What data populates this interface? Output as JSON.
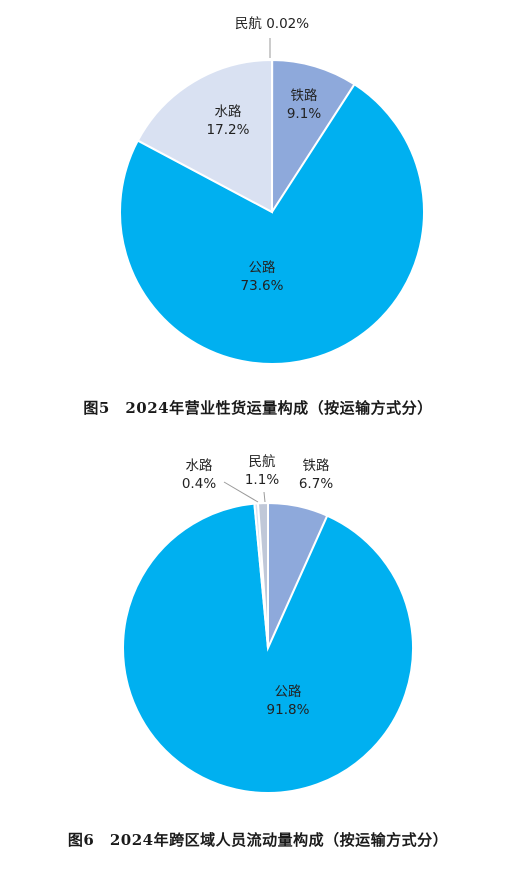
{
  "colors": {
    "公路": "#00b0f0",
    "铁路": "#8ea9db",
    "水路": "#d9e1f2",
    "民航": "#c0c8d8",
    "border": "#ffffff",
    "leader": "#9a9a9a"
  },
  "chart_data": [
    {
      "type": "pie",
      "caption": "图5　2024年营业性货运量构成（按运输方式分）",
      "slices": [
        {
          "name": "民航",
          "value": 0.02,
          "label": "0.02%"
        },
        {
          "name": "铁路",
          "value": 9.1,
          "label": "9.1%"
        },
        {
          "name": "公路",
          "value": 73.6,
          "label": "73.6%"
        },
        {
          "name": "水路",
          "value": 17.2,
          "label": "17.2%"
        }
      ]
    },
    {
      "type": "pie",
      "caption": "图6　2024年跨区域人员流动量构成（按运输方式分）",
      "slices": [
        {
          "name": "铁路",
          "value": 6.7,
          "label": "6.7%"
        },
        {
          "name": "公路",
          "value": 91.8,
          "label": "91.8%"
        },
        {
          "name": "水路",
          "value": 0.4,
          "label": "0.4%"
        },
        {
          "name": "民航",
          "value": 1.1,
          "label": "1.1%"
        }
      ]
    }
  ]
}
